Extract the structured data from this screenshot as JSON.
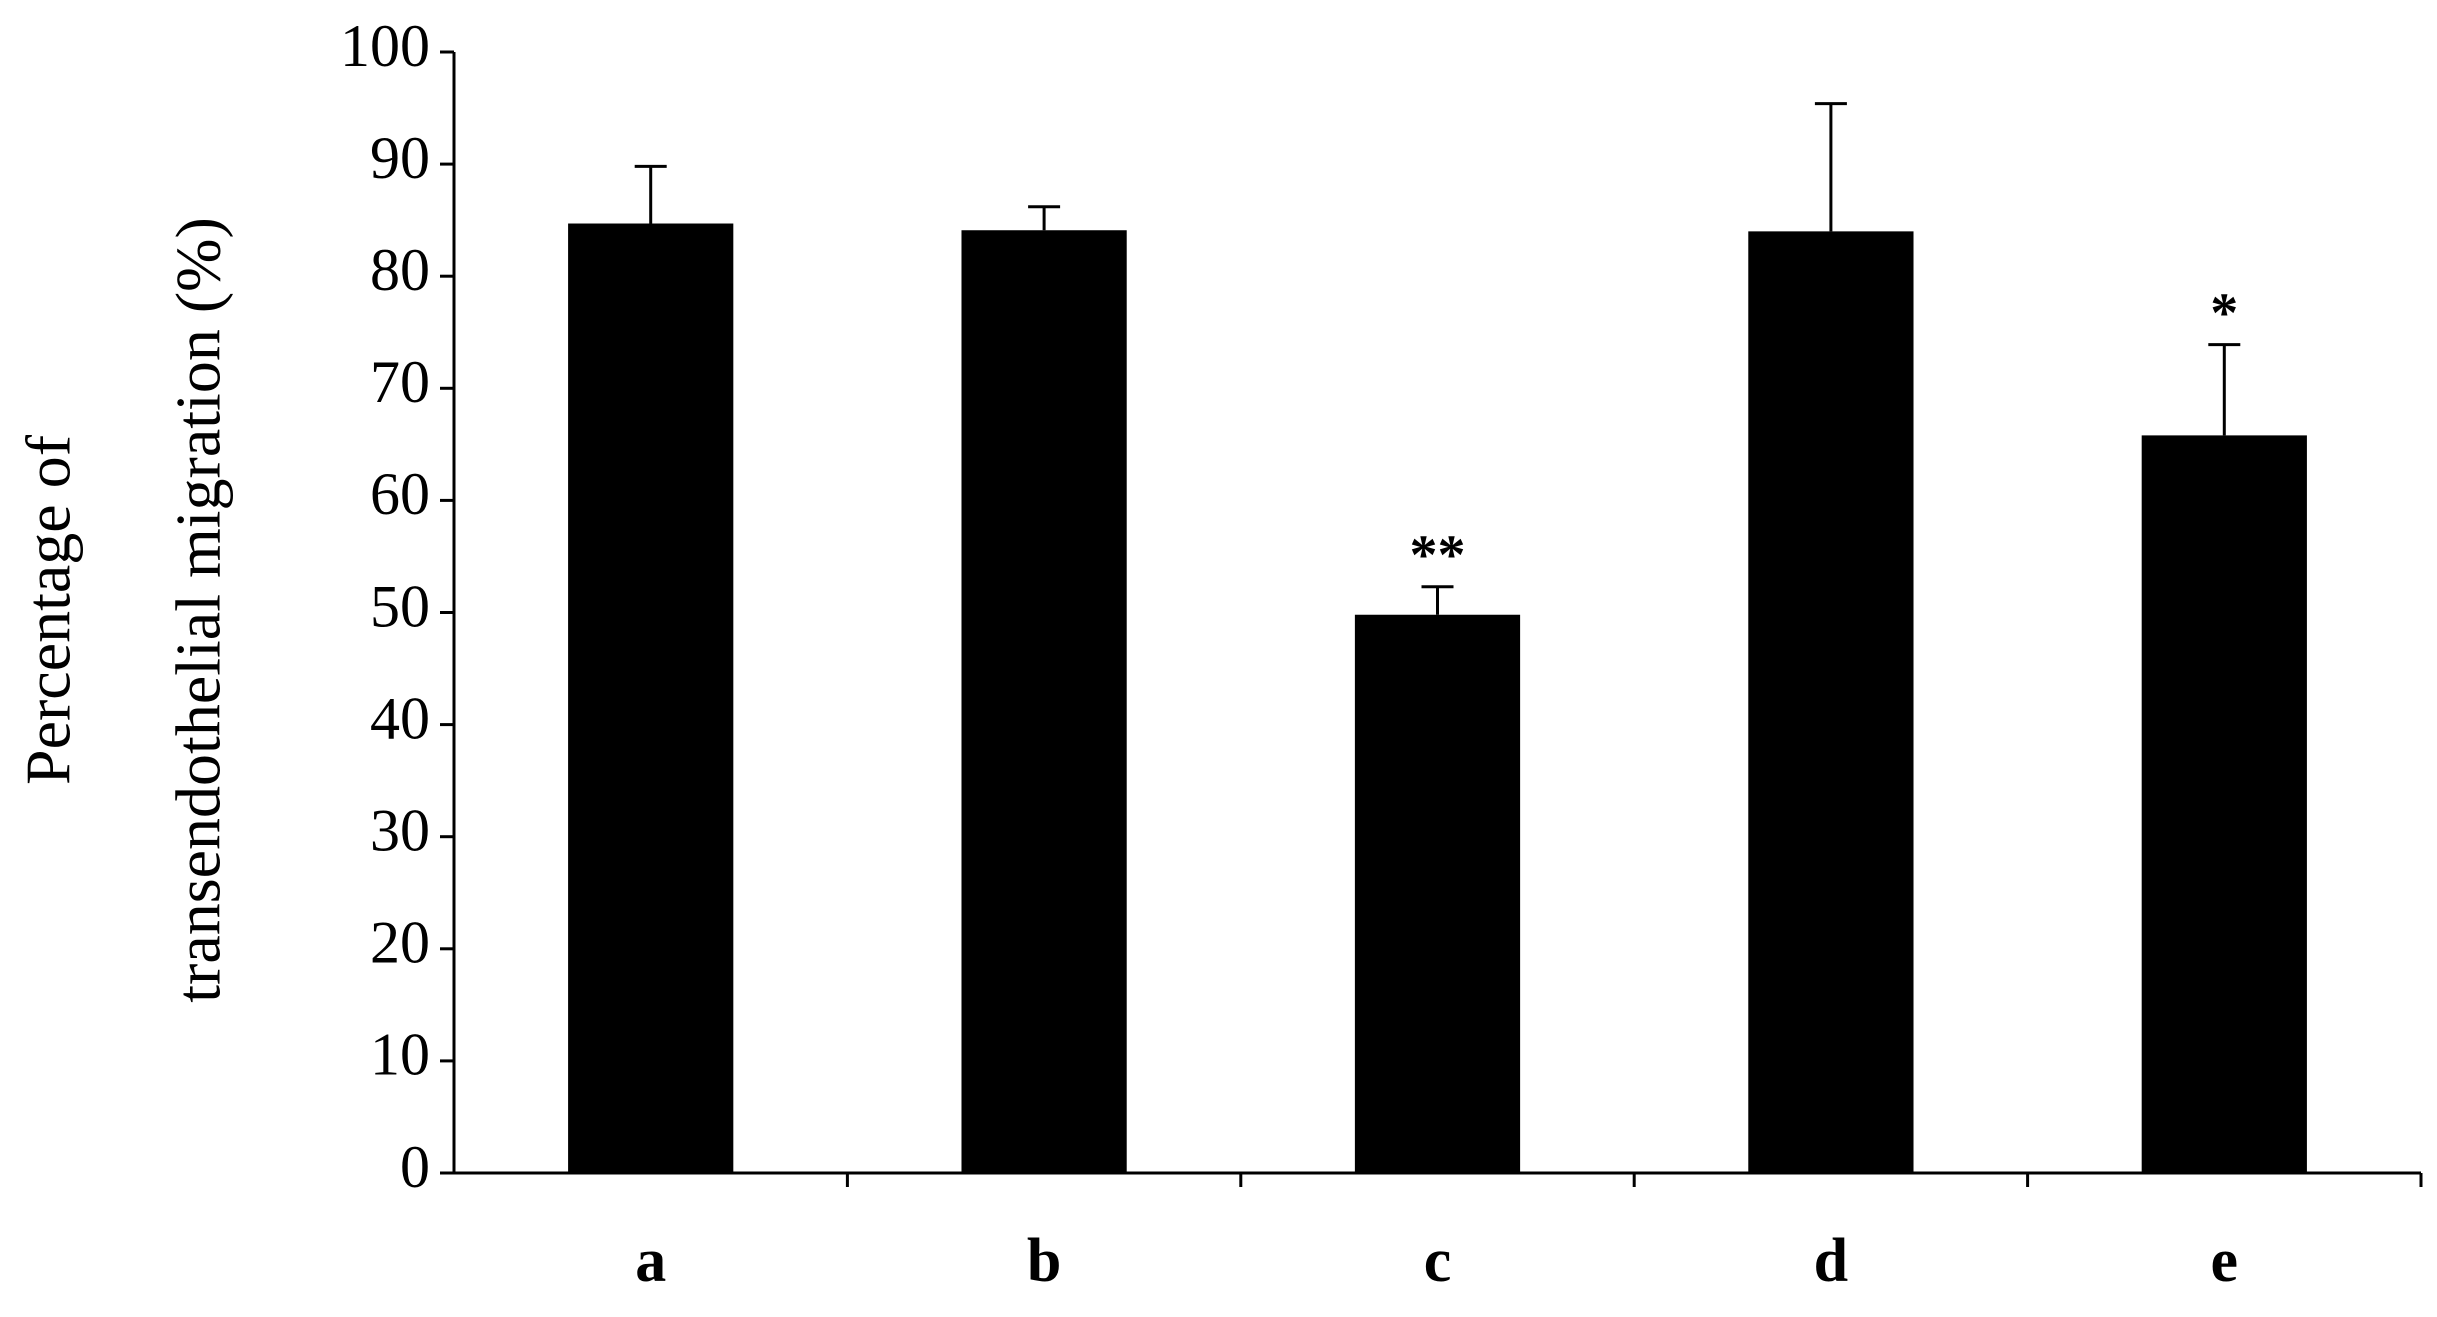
{
  "chart_data": {
    "type": "bar",
    "y_label": [
      "Percentage of",
      "transendothelial migration (%)"
    ],
    "categories": [
      "a",
      "b",
      "c",
      "d",
      "e"
    ],
    "values": [
      84.7,
      84.1,
      49.8,
      84.0,
      65.8
    ],
    "errors": [
      5.1,
      2.1,
      2.5,
      11.4,
      8.1
    ],
    "color": "#000000",
    "annotations": [
      {
        "category": "c",
        "text": "**"
      },
      {
        "category": "e",
        "text": "*"
      }
    ],
    "ylim": [
      0,
      100
    ],
    "yticks": [
      0,
      10,
      20,
      30,
      40,
      50,
      60,
      70,
      80,
      90,
      100
    ],
    "grid": false
  }
}
